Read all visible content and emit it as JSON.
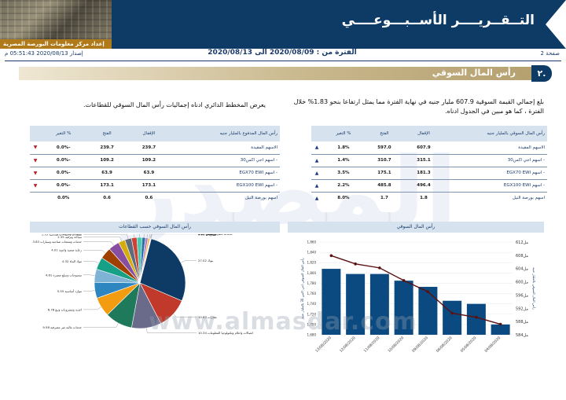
{
  "header": {
    "title": "التــقــريــــر الأســبـــوعــــي",
    "subtitle": "إعداد مركز معلومات البورصة المصرية"
  },
  "infobar": {
    "page": "صفحة 2",
    "period": "الفترة من : 2020/08/09 الى 2020/08/13",
    "issued": "إصدار 2020/08/13 05:51:43 م"
  },
  "section": {
    "number": "٢.",
    "title": "رأس المال السوقي"
  },
  "paragraphs": {
    "right": "بلغ إجمالي القيمة السوقية 607.9 مليار جنيه في نهاية الفترة مما يمثل ارتفاعا بنحو 1.83% خلال الفترة ، كما هو مبين في الجدول ادناه.",
    "left": "يعرض المخطط الدائري ادناه إجماليات رأس المال السوقي للقطاعات."
  },
  "table_right": {
    "headers": [
      "رأس المال السوقي بالمليار جنيه",
      "الإقفال",
      "الفتح",
      "% التغير"
    ],
    "rows": [
      {
        "name": "الاسهم المقيدة",
        "close": "607.9",
        "open": "597.0",
        "change": "1.8%",
        "dir": "up"
      },
      {
        "name": "- اسهم اجي اكس30",
        "close": "315.1",
        "open": "310.7",
        "change": "1.4%",
        "dir": "up"
      },
      {
        "name": "- اسهم EGX70 EWI",
        "close": "181.3",
        "open": "175.1",
        "change": "3.5%",
        "dir": "up"
      },
      {
        "name": "- اسهم EGX100 EWI",
        "close": "496.4",
        "open": "485.8",
        "change": "2.2%",
        "dir": "up"
      },
      {
        "name": "اسهم بورصة النيل",
        "close": "1.8",
        "open": "1.7",
        "change": "8.0%",
        "dir": "up"
      }
    ]
  },
  "table_left": {
    "headers": [
      "رأس المال المدفوع بالمليار جنيه",
      "الإقفال",
      "الفتح",
      "% التغير"
    ],
    "rows": [
      {
        "name": "الاسهم المقيدة",
        "close": "239.7",
        "open": "239.7",
        "change": "-0.0%",
        "dir": "down"
      },
      {
        "name": "- اسهم اجي اكس30",
        "close": "109.2",
        "open": "109.2",
        "change": "-0.0%",
        "dir": "down"
      },
      {
        "name": "- اسهم EGX70 EWI",
        "close": "63.9",
        "open": "63.9",
        "change": "-0.0%",
        "dir": "down"
      },
      {
        "name": "- اسهم EGX100 EWI",
        "close": "173.1",
        "open": "173.1",
        "change": "-0.0%",
        "dir": "down"
      },
      {
        "name": "اسهم بورصة النيل",
        "close": "0.6",
        "open": "0.6",
        "change": "0.0%",
        "dir": "none"
      }
    ]
  },
  "bar_chart_title": "رأس المال السوقي",
  "pie_chart_title": "رأس المال السوقي حسب القطاعات",
  "watermark": {
    "big": "المصدر",
    "url": "www.almasdar.com"
  },
  "colors": {
    "navy": "#0d3b66",
    "bar": "#0b4a80",
    "line": "#5a1010",
    "up": "#1a3a8a",
    "down": "#b51f1f"
  },
  "chart_data": [
    {
      "type": "bar",
      "title": "رأس المال السوقي",
      "categories": [
        "13/08/2020",
        "12/08/2020",
        "11/08/2020",
        "10/08/2020",
        "09/08/2020",
        "06/08/2020",
        "05/08/2020",
        "04/08/2020"
      ],
      "series": [
        {
          "name": "الاسهم المقيدة",
          "axis": "left",
          "values": [
            1.808,
            1.798,
            1.798,
            1.785,
            1.773,
            1.746,
            1.74,
            1.7
          ]
        },
        {
          "name": "الاسهم المقيدة",
          "axis": "right",
          "type": "line",
          "values": [
            607.9,
            605.4,
            604.2,
            600.4,
            597.0,
            590.5,
            589.3,
            587.2
          ]
        }
      ],
      "y_left_ticks": [
        "1,680",
        "1,700",
        "1,720",
        "1,740",
        "1,760",
        "1,780",
        "1,800",
        "1,820",
        "1,840",
        "1,860"
      ],
      "y_right_ticks": [
        "مل584",
        "مل586",
        "مل588",
        "مل590",
        "مل592",
        "مل594",
        "مل596",
        "مل598",
        "مل600",
        "مل602",
        "مل604",
        "مل606",
        "مل608",
        "مل610",
        "مل612"
      ],
      "y_left_label": "رأس المال السوقي اجي اكس 30 بالمليار جنيه",
      "y_right_label": "رأس المال السوقي بالمليار جنيه",
      "ylim_left": [
        1680,
        1860
      ],
      "ylim_right": [
        584,
        612
      ]
    },
    {
      "type": "pie",
      "title": "رأس المال السوقي حسب القطاعات",
      "slices": [
        {
          "label": "بنوك",
          "value": 27.02,
          "color": "#0d3b66"
        },
        {
          "label": "عقارات",
          "value": 10.83,
          "color": "#c0392b"
        },
        {
          "label": "اتصالات واعلام وتكنولوجيا المعلومات",
          "value": 10.34,
          "color": "#6a6a8a"
        },
        {
          "label": "خدمات مالية غير مصرفية",
          "value": 9.58,
          "color": "#1e7a5a"
        },
        {
          "label": "اغذية ومشروبات وتبغ",
          "value": 6.78,
          "color": "#f39c12"
        },
        {
          "label": "موارد أساسية",
          "value": 5.55,
          "color": "#2e86c1"
        },
        {
          "label": "منسوجات وسلع معمرة",
          "value": 4.61,
          "color": "#7fb3d5"
        },
        {
          "label": "مواد البناء",
          "value": 4.32,
          "color": "#16a085"
        },
        {
          "label": "رعاية صحية وادوية",
          "value": 4.01,
          "color": "#a04000"
        },
        {
          "label": "خدمات ومنتجات صناعية وسيارات",
          "value": 3.83,
          "color": "#884ea0"
        },
        {
          "label": "سياحة وترفيه",
          "value": 2.35,
          "color": "#d4ac0d"
        },
        {
          "label": "مقاولات وانشاءات هندسية",
          "value": 2.35,
          "color": "#5d6d7e"
        },
        {
          "label": "تجارة وموزعون",
          "value": 1.88,
          "color": "#cb4335"
        },
        {
          "label": "ورق ومواد تعبئة وتغليف",
          "value": 1.77,
          "color": "#48c9b0"
        },
        {
          "label": "طاقة وخدمات مساندة",
          "value": 1.26,
          "color": "#2874a6"
        },
        {
          "label": "مرافق",
          "value": 0.87,
          "color": "#af7ac5"
        },
        {
          "label": "خدمات النقل والشحن",
          "value": 0.65,
          "color": "#f5b041"
        },
        {
          "label": "غير محدد",
          "value": 0.23,
          "color": "#85929e"
        },
        {
          "label": "كيماويات",
          "value": 0.19,
          "color": "#1abc9c"
        }
      ]
    }
  ]
}
